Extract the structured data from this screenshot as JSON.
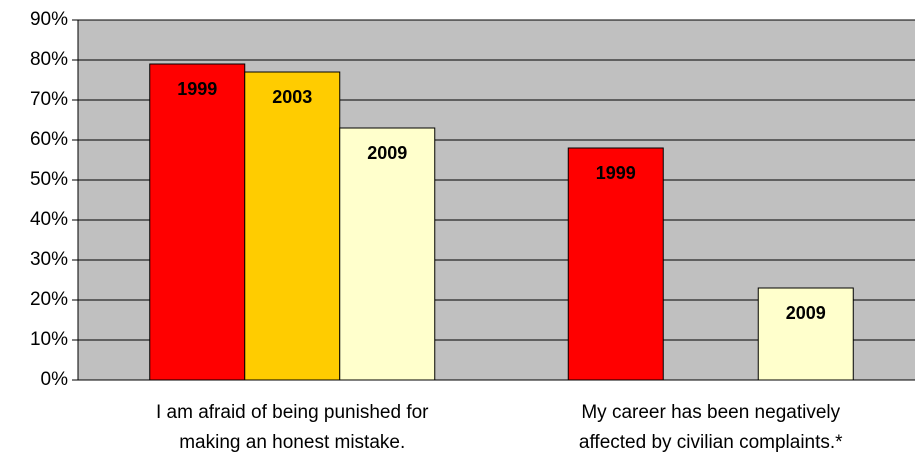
{
  "chart_data": {
    "type": "bar",
    "categories": [
      "I am afraid of being punished for making an honest mistake.",
      "My career has been negatively affected by civilian complaints.*"
    ],
    "series": [
      {
        "name": "1999",
        "color": "#ff0000",
        "values": [
          79,
          58
        ]
      },
      {
        "name": "2003",
        "color": "#ffcc00",
        "values": [
          77,
          null
        ]
      },
      {
        "name": "2009",
        "color": "#ffffcc",
        "values": [
          63,
          23
        ]
      }
    ],
    "ylim": [
      0,
      90
    ],
    "yticks": [
      {
        "value": 0,
        "label": "0%"
      },
      {
        "value": 10,
        "label": "10%"
      },
      {
        "value": 20,
        "label": "20%"
      },
      {
        "value": 30,
        "label": "30%"
      },
      {
        "value": 40,
        "label": "40%"
      },
      {
        "value": 50,
        "label": "50%"
      },
      {
        "value": 60,
        "label": "60%"
      },
      {
        "value": 70,
        "label": "70%"
      },
      {
        "value": 80,
        "label": "80%"
      },
      {
        "value": 90,
        "label": "90%"
      }
    ],
    "grid": true,
    "plot_background": "#c0c0c0"
  }
}
